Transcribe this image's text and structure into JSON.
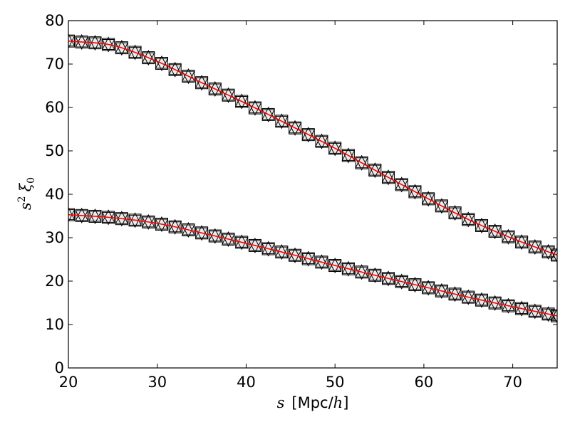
{
  "chart_data": {
    "type": "line",
    "title": "",
    "xlabel": {
      "var": "s",
      "unit_open": "[Mpc/",
      "unit_var": "h",
      "unit_close": "]"
    },
    "ylabel": {
      "base": "s",
      "exp": "2",
      "var": "ξ",
      "sub": "0"
    },
    "xlim": [
      20,
      75
    ],
    "ylim": [
      0,
      80
    ],
    "xticks": [
      20,
      30,
      40,
      50,
      60,
      70
    ],
    "yticks": [
      0,
      10,
      20,
      30,
      40,
      50,
      60,
      70,
      80
    ],
    "colors": {
      "model": "#ff0000",
      "square_fill": "#d9d9d9",
      "marker_edge": "#000000",
      "axes": "#000000"
    },
    "marker_x": [
      20.0,
      21.5,
      23.0,
      24.5,
      26.0,
      27.5,
      29.0,
      30.5,
      32.0,
      33.5,
      35.0,
      36.5,
      38.0,
      39.5,
      41.0,
      42.5,
      44.0,
      45.5,
      47.0,
      48.5,
      50.0,
      51.5,
      53.0,
      54.5,
      56.0,
      57.5,
      59.0,
      60.5,
      62.0,
      63.5,
      65.0,
      66.5,
      68.0,
      69.5,
      71.0,
      72.5,
      74.0,
      75.0
    ],
    "series": [
      {
        "name": "upper-model",
        "type": "line",
        "x": [
          20,
          25,
          30,
          35,
          40,
          45,
          50,
          55,
          60,
          65,
          70,
          75
        ],
        "y": [
          75.3,
          74.3,
          70.6,
          65.7,
          60.9,
          55.8,
          50.6,
          45.0,
          39.5,
          34.2,
          29.8,
          26.0
        ]
      },
      {
        "name": "lower-model",
        "type": "line",
        "x": [
          20,
          25,
          30,
          35,
          40,
          45,
          50,
          55,
          60,
          65,
          70,
          75
        ],
        "y": [
          35.3,
          34.6,
          33.3,
          31.1,
          28.7,
          26.2,
          23.6,
          21.1,
          18.7,
          16.3,
          14.1,
          12.0
        ]
      },
      {
        "name": "upper-squares",
        "type": "marker",
        "marker": "square",
        "attach": "upper-model"
      },
      {
        "name": "upper-triangles-up",
        "type": "marker",
        "marker": "triangle-up",
        "attach": "upper-model"
      },
      {
        "name": "upper-triangles-down",
        "type": "marker",
        "marker": "triangle-down",
        "attach": "upper-model"
      },
      {
        "name": "lower-squares",
        "type": "marker",
        "marker": "square",
        "attach": "lower-model"
      },
      {
        "name": "lower-triangles-up",
        "type": "marker",
        "marker": "triangle-up",
        "attach": "lower-model"
      },
      {
        "name": "lower-triangles-down",
        "type": "marker",
        "marker": "triangle-down",
        "attach": "lower-model"
      }
    ]
  }
}
